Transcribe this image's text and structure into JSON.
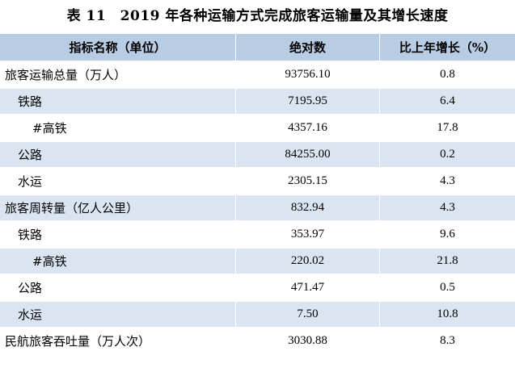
{
  "title": "表 11　2019 年各种运输方式完成旅客运输量及其增长速度",
  "headers": {
    "name": "指标名称（单位）",
    "abs": "绝对数",
    "pct": "比上年增长（%）"
  },
  "rows": [
    {
      "name": "旅客运输总量（万人）",
      "abs": "93756.10",
      "pct": "0.8"
    },
    {
      "name": "铁路",
      "abs": "7195.95",
      "pct": "6.4"
    },
    {
      "name": "#高铁",
      "abs": "4357.16",
      "pct": "17.8"
    },
    {
      "name": "公路",
      "abs": "84255.00",
      "pct": "0.2"
    },
    {
      "name": "水运",
      "abs": "2305.15",
      "pct": "4.3"
    },
    {
      "name": "旅客周转量（亿人公里）",
      "abs": "832.94",
      "pct": "4.3"
    },
    {
      "name": "铁路",
      "abs": "353.97",
      "pct": "9.6"
    },
    {
      "name": "#高铁",
      "abs": "220.02",
      "pct": "21.8"
    },
    {
      "name": "公路",
      "abs": "471.47",
      "pct": "0.5"
    },
    {
      "name": "水运",
      "abs": "7.50",
      "pct": "10.8"
    },
    {
      "name": "民航旅客吞吐量（万人次）",
      "abs": "3030.88",
      "pct": "8.3"
    }
  ],
  "colors": {
    "header_bg": "#b8cce4",
    "alt_row_bg": "#dbe5f1",
    "plain_row_bg": "#ffffff"
  }
}
